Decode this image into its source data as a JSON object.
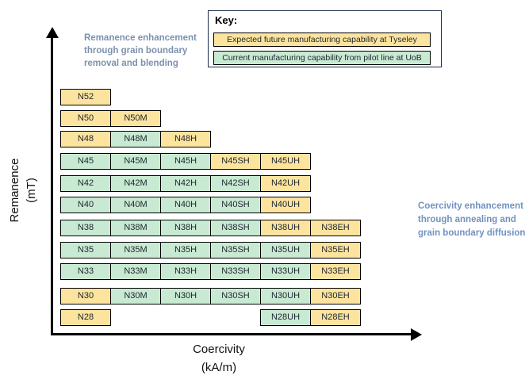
{
  "axes": {
    "y_label_line1": "Remanence",
    "y_label_line2": "(mT)",
    "x_label_line1": "Coercivity",
    "x_label_line2": "(kA/m)"
  },
  "annotations": {
    "left": "Remanence enhancement through grain boundary removal and blending",
    "right": "Coercivity enhancement through annealing and grain boundary diffusion"
  },
  "key": {
    "title": "Key:",
    "entries": [
      {
        "label": "Expected future manufacturing capability at Tyseley",
        "status": "future",
        "color": "#fce49e"
      },
      {
        "label": "Current manufacturing capability from pilot line at UoB",
        "status": "current",
        "color": "#c9ead2"
      }
    ]
  },
  "colors": {
    "future": "#fce49e",
    "current": "#c9ead2",
    "cell_border": "#000000",
    "cell_text": "#1c2430",
    "axis": "#000000",
    "annotation_left": "#7c91ac",
    "annotation_right": "#7291c2",
    "key_border": "#1a2b4a"
  },
  "chart_data": {
    "type": "table",
    "title": "NdFeB magnet grade manufacturing capability",
    "xlabel": "Coercivity (kA/m)",
    "ylabel": "Remanence (mT)",
    "column_suffixes": [
      "",
      "M",
      "H",
      "SH",
      "UH",
      "EH"
    ],
    "legend": {
      "future": "Expected future manufacturing capability at Tyseley",
      "current": "Current manufacturing capability from pilot line at UoB"
    },
    "rows": [
      {
        "grade": "N52",
        "cells": [
          {
            "label": "N52",
            "col": 0,
            "status": "future"
          }
        ]
      },
      {
        "grade": "N50",
        "cells": [
          {
            "label": "N50",
            "col": 0,
            "status": "future"
          },
          {
            "label": "N50M",
            "col": 1,
            "status": "future"
          }
        ]
      },
      {
        "grade": "N48",
        "cells": [
          {
            "label": "N48",
            "col": 0,
            "status": "future"
          },
          {
            "label": "N48M",
            "col": 1,
            "status": "current"
          },
          {
            "label": "N48H",
            "col": 2,
            "status": "future"
          }
        ]
      },
      {
        "grade": "N45",
        "cells": [
          {
            "label": "N45",
            "col": 0,
            "status": "current"
          },
          {
            "label": "N45M",
            "col": 1,
            "status": "current"
          },
          {
            "label": "N45H",
            "col": 2,
            "status": "current"
          },
          {
            "label": "N45SH",
            "col": 3,
            "status": "future"
          },
          {
            "label": "N45UH",
            "col": 4,
            "status": "future"
          }
        ]
      },
      {
        "grade": "N42",
        "cells": [
          {
            "label": "N42",
            "col": 0,
            "status": "current"
          },
          {
            "label": "N42M",
            "col": 1,
            "status": "current"
          },
          {
            "label": "N42H",
            "col": 2,
            "status": "current"
          },
          {
            "label": "N42SH",
            "col": 3,
            "status": "current"
          },
          {
            "label": "N42UH",
            "col": 4,
            "status": "future"
          }
        ]
      },
      {
        "grade": "N40",
        "cells": [
          {
            "label": "N40",
            "col": 0,
            "status": "current"
          },
          {
            "label": "N40M",
            "col": 1,
            "status": "current"
          },
          {
            "label": "N40H",
            "col": 2,
            "status": "current"
          },
          {
            "label": "N40SH",
            "col": 3,
            "status": "current"
          },
          {
            "label": "N40UH",
            "col": 4,
            "status": "future"
          }
        ]
      },
      {
        "grade": "N38",
        "cells": [
          {
            "label": "N38",
            "col": 0,
            "status": "current"
          },
          {
            "label": "N38M",
            "col": 1,
            "status": "current"
          },
          {
            "label": "N38H",
            "col": 2,
            "status": "current"
          },
          {
            "label": "N38SH",
            "col": 3,
            "status": "current"
          },
          {
            "label": "N38UH",
            "col": 4,
            "status": "future"
          },
          {
            "label": "N38EH",
            "col": 5,
            "status": "future"
          }
        ]
      },
      {
        "grade": "N35",
        "cells": [
          {
            "label": "N35",
            "col": 0,
            "status": "current"
          },
          {
            "label": "N35M",
            "col": 1,
            "status": "current"
          },
          {
            "label": "N35H",
            "col": 2,
            "status": "current"
          },
          {
            "label": "N35SH",
            "col": 3,
            "status": "current"
          },
          {
            "label": "N35UH",
            "col": 4,
            "status": "current"
          },
          {
            "label": "N35EH",
            "col": 5,
            "status": "future"
          }
        ]
      },
      {
        "grade": "N33",
        "cells": [
          {
            "label": "N33",
            "col": 0,
            "status": "current"
          },
          {
            "label": "N33M",
            "col": 1,
            "status": "current"
          },
          {
            "label": "N33H",
            "col": 2,
            "status": "current"
          },
          {
            "label": "N33SH",
            "col": 3,
            "status": "current"
          },
          {
            "label": "N33UH",
            "col": 4,
            "status": "current"
          },
          {
            "label": "N33EH",
            "col": 5,
            "status": "future"
          }
        ]
      },
      {
        "grade": "N30",
        "cells": [
          {
            "label": "N30",
            "col": 0,
            "status": "future"
          },
          {
            "label": "N30M",
            "col": 1,
            "status": "current"
          },
          {
            "label": "N30H",
            "col": 2,
            "status": "current"
          },
          {
            "label": "N30SH",
            "col": 3,
            "status": "current"
          },
          {
            "label": "N30UH",
            "col": 4,
            "status": "current"
          },
          {
            "label": "N30EH",
            "col": 5,
            "status": "future"
          }
        ]
      },
      {
        "grade": "N28",
        "cells": [
          {
            "label": "N28",
            "col": 0,
            "status": "future"
          },
          {
            "label": "N28UH",
            "col": 4,
            "status": "current"
          },
          {
            "label": "N28EH",
            "col": 5,
            "status": "future"
          }
        ]
      }
    ]
  }
}
